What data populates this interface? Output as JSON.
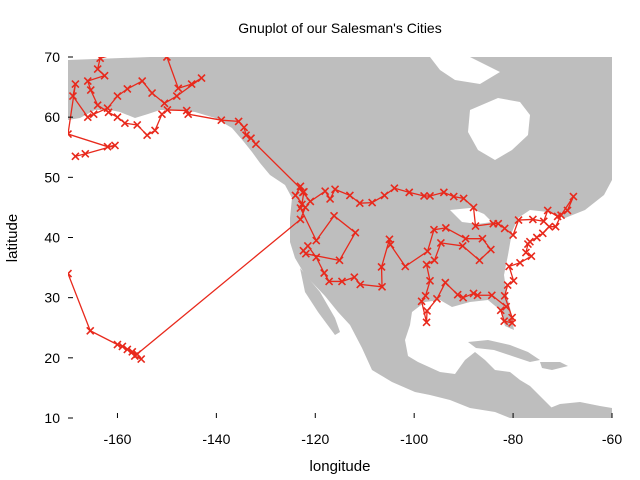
{
  "chart_data": {
    "type": "scatter",
    "title": "Gnuplot of our Salesman's Cities",
    "xlabel": "longitude",
    "ylabel": "latitude",
    "xlim": [
      -170,
      -60
    ],
    "ylim": [
      10,
      70
    ],
    "x_ticks": [
      -160,
      -140,
      -120,
      -100,
      -80,
      -60
    ],
    "y_ticks": [
      10,
      20,
      30,
      40,
      50,
      60,
      70
    ],
    "grid": false,
    "legend": "none",
    "colors": {
      "series": "#e8291c",
      "land": "#bebebe"
    },
    "marker": "x",
    "series": [
      {
        "values_hint": "route through cities, connected by lines",
        "points": [
          [
            -170,
            34
          ],
          [
            -165.5,
            24.5
          ],
          [
            -160,
            22.2
          ],
          [
            -159,
            21.9
          ],
          [
            -158,
            21.4
          ],
          [
            -157,
            21.0
          ],
          [
            -156,
            20.6
          ],
          [
            -155.2,
            19.8
          ],
          [
            -156.5,
            20.3
          ],
          [
            -123,
            43
          ],
          [
            -122,
            45
          ],
          [
            -124,
            47
          ],
          [
            -123,
            48.5
          ],
          [
            -122.5,
            47.5
          ],
          [
            -121,
            46
          ],
          [
            -118,
            47.7
          ],
          [
            -117,
            46.4
          ],
          [
            -116,
            48
          ],
          [
            -113,
            47
          ],
          [
            -111,
            45.7
          ],
          [
            -108.5,
            45.8
          ],
          [
            -106,
            47
          ],
          [
            -104,
            48.2
          ],
          [
            -101,
            47.5
          ],
          [
            -98,
            46.9
          ],
          [
            -96.8,
            46.9
          ],
          [
            -94,
            47.5
          ],
          [
            -92,
            46.8
          ],
          [
            -90,
            46.5
          ],
          [
            -88,
            45
          ],
          [
            -87.6,
            41.9
          ],
          [
            -84,
            42.3
          ],
          [
            -83,
            42.3
          ],
          [
            -81.7,
            41.5
          ],
          [
            -80,
            40.4
          ],
          [
            -78.9,
            42.9
          ],
          [
            -76,
            43
          ],
          [
            -73.8,
            42.7
          ],
          [
            -73,
            44.5
          ],
          [
            -71,
            43.5
          ],
          [
            -69,
            44.5
          ],
          [
            -67.8,
            46.8
          ],
          [
            -70.3,
            43.7
          ],
          [
            -71.4,
            41.8
          ],
          [
            -72.7,
            41.8
          ],
          [
            -74,
            40.7
          ],
          [
            -75.2,
            40
          ],
          [
            -76.6,
            39.3
          ],
          [
            -77,
            38.9
          ],
          [
            -77.4,
            37.5
          ],
          [
            -76.3,
            36.9
          ],
          [
            -78.6,
            35.8
          ],
          [
            -80.8,
            35.2
          ],
          [
            -79.9,
            32.8
          ],
          [
            -81.1,
            32.1
          ],
          [
            -81.7,
            30.3
          ],
          [
            -80.2,
            26.7
          ],
          [
            -80.2,
            25.8
          ],
          [
            -81.8,
            26.1
          ],
          [
            -82.5,
            27.9
          ],
          [
            -81.4,
            28.5
          ],
          [
            -84.3,
            30.4
          ],
          [
            -87.2,
            30.4
          ],
          [
            -88,
            30.7
          ],
          [
            -90.1,
            30
          ],
          [
            -91.2,
            30.5
          ],
          [
            -93.7,
            32.5
          ],
          [
            -95.4,
            29.8
          ],
          [
            -97.4,
            27.8
          ],
          [
            -97.5,
            25.9
          ],
          [
            -98.5,
            29.4
          ],
          [
            -97.7,
            30.3
          ],
          [
            -96.8,
            32.8
          ],
          [
            -97.5,
            35.5
          ],
          [
            -95.9,
            36.2
          ],
          [
            -94.6,
            39.1
          ],
          [
            -90.2,
            38.6
          ],
          [
            -86.8,
            36.2
          ],
          [
            -84.5,
            38
          ],
          [
            -86.2,
            39.8
          ],
          [
            -89.6,
            39.8
          ],
          [
            -93.6,
            41.6
          ],
          [
            -96,
            41.3
          ],
          [
            -97.3,
            37.7
          ],
          [
            -101.8,
            35.2
          ],
          [
            -104.8,
            38.8
          ],
          [
            -105,
            39.7
          ],
          [
            -106.6,
            35.1
          ],
          [
            -106.5,
            31.8
          ],
          [
            -110.9,
            32.2
          ],
          [
            -112.1,
            33.4
          ],
          [
            -114.6,
            32.7
          ],
          [
            -117.2,
            32.7
          ],
          [
            -118.2,
            34.1
          ],
          [
            -119.8,
            36.7
          ],
          [
            -121.5,
            38.6
          ],
          [
            -122.4,
            37.8
          ],
          [
            -121.9,
            37.3
          ],
          [
            -115.1,
            36.2
          ],
          [
            -111.9,
            40.8
          ],
          [
            -116.2,
            43.6
          ],
          [
            -119.8,
            39.5
          ],
          [
            -123,
            44.9
          ],
          [
            -122.7,
            45.5
          ],
          [
            -122.3,
            47.6
          ],
          [
            -132,
            55.5
          ],
          [
            -133,
            56.5
          ],
          [
            -134,
            57
          ],
          [
            -134.4,
            58.3
          ],
          [
            -135.5,
            59.3
          ],
          [
            -139,
            59.5
          ],
          [
            -145.7,
            60.5
          ],
          [
            -146,
            61.1
          ],
          [
            -149.9,
            61.2
          ],
          [
            -151,
            60.5
          ],
          [
            -152.4,
            57.8
          ],
          [
            -154,
            57
          ],
          [
            -156,
            58.7
          ],
          [
            -158.5,
            59
          ],
          [
            -160,
            60
          ],
          [
            -161.8,
            60.8
          ],
          [
            -164,
            62
          ],
          [
            -165.4,
            64.5
          ],
          [
            -166,
            66
          ],
          [
            -162.6,
            66.9
          ],
          [
            -164,
            68
          ],
          [
            -163.5,
            69.8
          ],
          [
            -156.8,
            71.3
          ],
          [
            -150,
            70
          ],
          [
            -147.7,
            64.8
          ],
          [
            -145,
            65.5
          ],
          [
            -143,
            66.5
          ],
          [
            -148,
            63.5
          ],
          [
            -150.5,
            62.3
          ],
          [
            -153,
            64
          ],
          [
            -155,
            66
          ],
          [
            -158,
            64.7
          ],
          [
            -160,
            63.5
          ],
          [
            -162,
            61.5
          ],
          [
            -164.8,
            60.5
          ],
          [
            -166,
            60
          ],
          [
            -169,
            63.5
          ],
          [
            -168.5,
            65.5
          ],
          [
            -170,
            57.2
          ],
          [
            -162,
            55.1
          ],
          [
            -160.5,
            55.3
          ],
          [
            -166.5,
            53.9
          ],
          [
            -168.5,
            53.5
          ]
        ]
      }
    ]
  }
}
